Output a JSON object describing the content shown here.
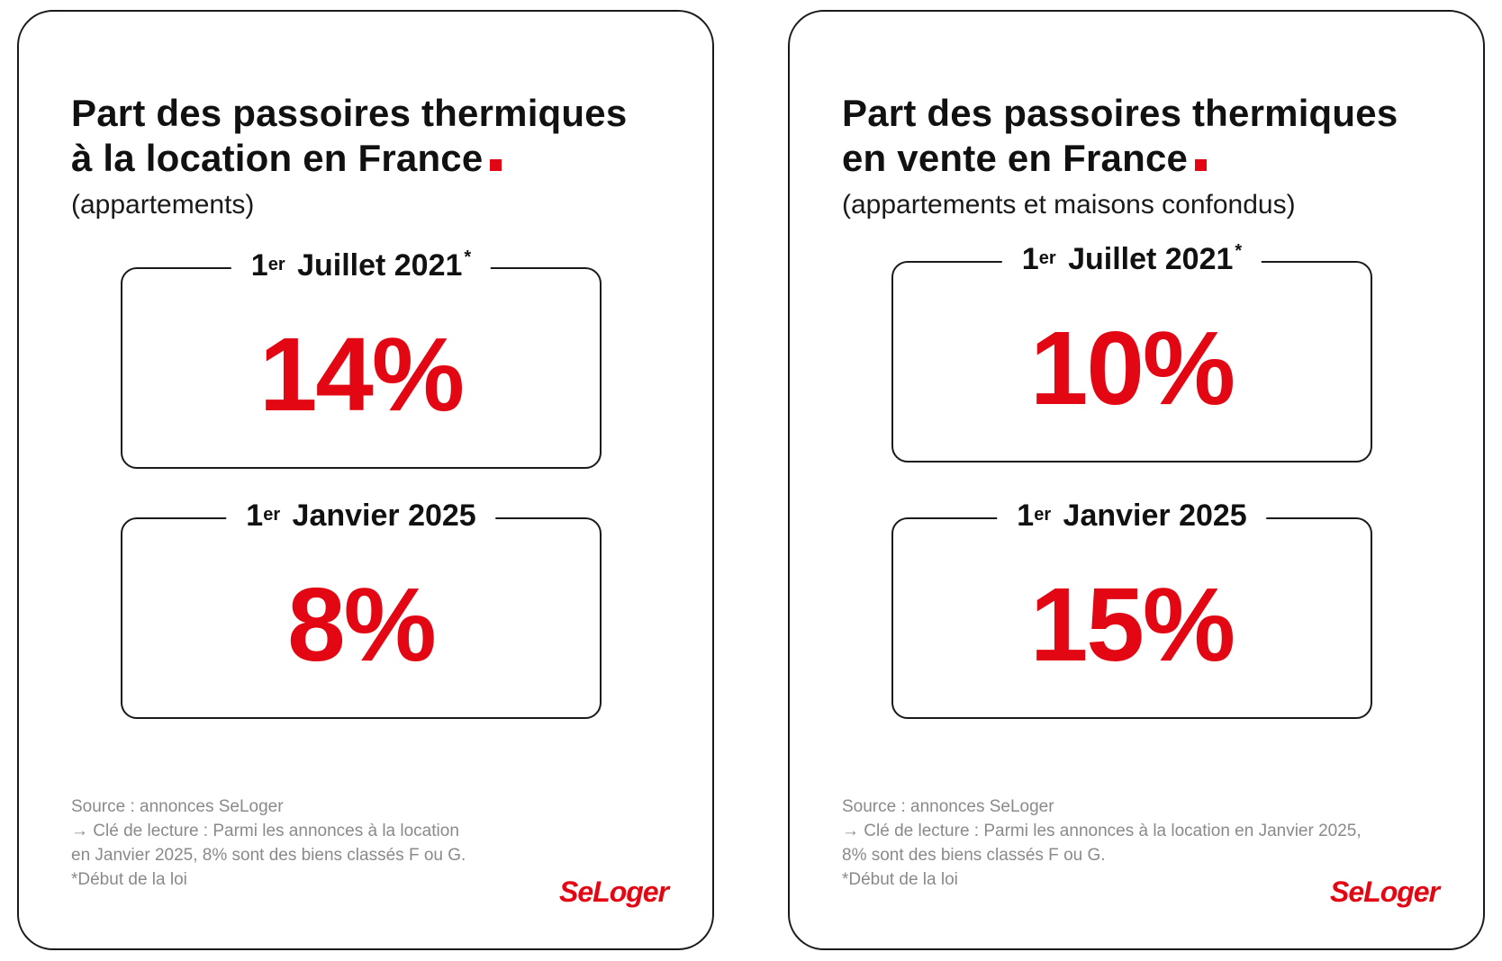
{
  "colors": {
    "accent": "#e30613",
    "text": "#111111",
    "muted": "#8a8a8a",
    "border": "#1a1a1a"
  },
  "cards": [
    {
      "title_line1": "Part des passoires thermiques",
      "title_line2": "à la location en France",
      "subtitle": "(appartements)",
      "boxes": [
        {
          "label_num": "1",
          "label_sup": "er",
          "label_text": "Juillet 2021",
          "label_star": "*",
          "value": "14%"
        },
        {
          "label_num": "1",
          "label_sup": "er",
          "label_text": "Janvier 2025",
          "label_star": "",
          "value": "8%"
        }
      ],
      "footnote": {
        "source": "Source : annonces SeLoger",
        "reading_1": "→ Clé de lecture : Parmi les annonces à la location",
        "reading_2": "en Janvier 2025, 8% sont des biens classés F ou G.",
        "law": "*Début de la loi"
      },
      "logo": "SeLoger"
    },
    {
      "title_line1": "Part des passoires thermiques",
      "title_line2": "en vente en France",
      "subtitle": "(appartements et maisons confondus)",
      "boxes": [
        {
          "label_num": "1",
          "label_sup": "er",
          "label_text": "Juillet 2021",
          "label_star": "*",
          "value": "10%"
        },
        {
          "label_num": "1",
          "label_sup": "er",
          "label_text": "Janvier 2025",
          "label_star": "",
          "value": "15%"
        }
      ],
      "footnote": {
        "source": "Source : annonces SeLoger",
        "reading_1": "→ Clé de lecture : Parmi les annonces à la location en Janvier 2025,",
        "reading_2": "8% sont des biens classés F ou G.",
        "law": "*Début de la loi"
      },
      "logo": "SeLoger"
    }
  ]
}
